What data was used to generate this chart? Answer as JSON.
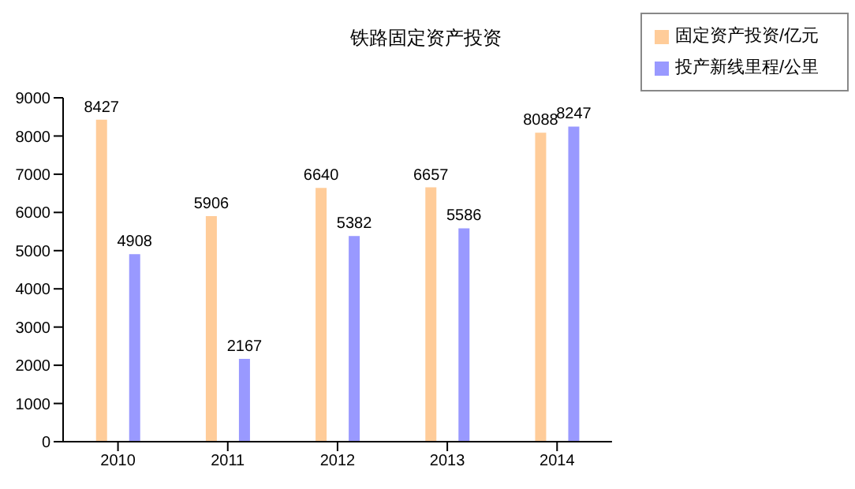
{
  "chart_data": {
    "type": "bar",
    "title": "铁路固定资产投资",
    "categories": [
      "2010",
      "2011",
      "2012",
      "2013",
      "2014"
    ],
    "series": [
      {
        "name": "固定资产投资/亿元",
        "color": "#ffcc99",
        "values": [
          8427,
          5906,
          6640,
          6657,
          8088
        ]
      },
      {
        "name": "投产新线里程/公里",
        "color": "#9999ff",
        "values": [
          4908,
          2167,
          5382,
          5586,
          8247
        ]
      }
    ],
    "ylim": [
      0,
      9000
    ],
    "yticks": [
      0,
      1000,
      2000,
      3000,
      4000,
      5000,
      6000,
      7000,
      8000,
      9000
    ],
    "grid": false,
    "legend": "top right",
    "data_labels": true
  }
}
